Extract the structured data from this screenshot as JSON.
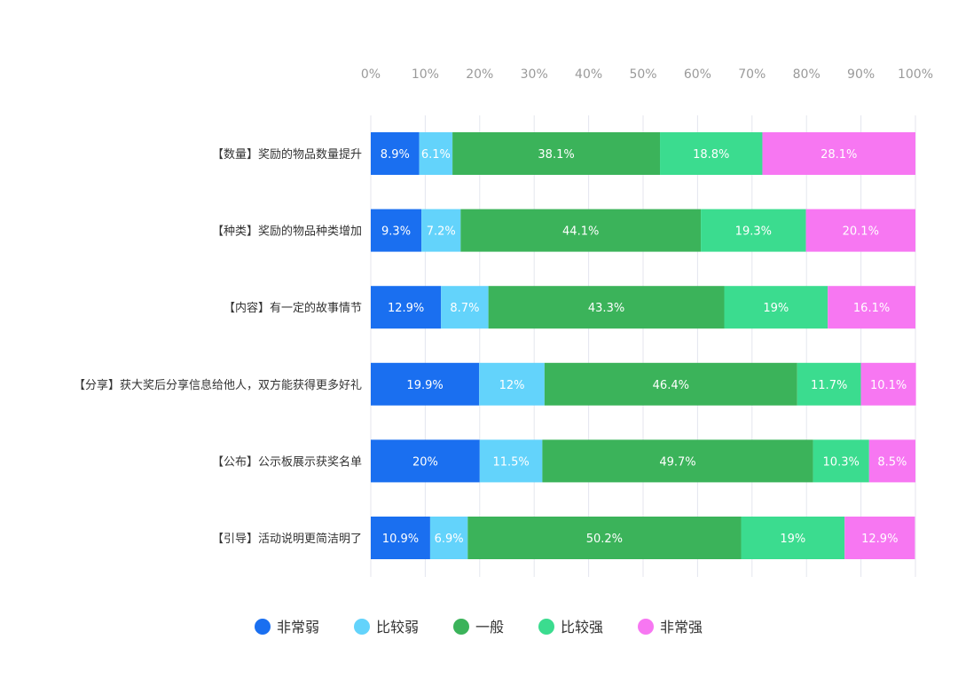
{
  "chart_data": {
    "type": "bar",
    "orientation": "horizontal",
    "stacked": "percent",
    "categories": [
      "【数量】奖励的物品数量提升",
      "【种类】奖励的物品种类增加",
      "【内容】有一定的故事情节",
      "【分享】获大奖后分享信息给他人，双方能获得更多好礼",
      "【公布】公示板展示获奖名单",
      "【引导】活动说明更简洁明了"
    ],
    "series": [
      {
        "name": "非常弱",
        "color": "#1a6ff0",
        "values": [
          8.9,
          9.3,
          12.9,
          19.9,
          20,
          10.9
        ],
        "labels": [
          "8.9%",
          "9.3%",
          "12.9%",
          "19.9%",
          "20%",
          "10.9%"
        ]
      },
      {
        "name": "比较弱",
        "color": "#63d3fb",
        "values": [
          6.1,
          7.2,
          8.7,
          12,
          11.5,
          6.9
        ],
        "labels": [
          "6.1%",
          "7.2%",
          "8.7%",
          "12%",
          "11.5%",
          "6.9%"
        ]
      },
      {
        "name": "一般",
        "color": "#3bb35a",
        "values": [
          38.1,
          44.1,
          43.3,
          46.4,
          49.7,
          50.2
        ],
        "labels": [
          "38.1%",
          "44.1%",
          "43.3%",
          "46.4%",
          "49.7%",
          "50.2%"
        ]
      },
      {
        "name": "比较强",
        "color": "#3bdc8f",
        "values": [
          18.8,
          19.3,
          19,
          11.7,
          10.3,
          19
        ],
        "labels": [
          "18.8%",
          "19.3%",
          "19%",
          "11.7%",
          "10.3%",
          "19%"
        ]
      },
      {
        "name": "非常强",
        "color": "#f777f2",
        "values": [
          28.1,
          20.1,
          16.1,
          10.1,
          8.5,
          12.9
        ],
        "labels": [
          "28.1%",
          "20.1%",
          "16.1%",
          "10.1%",
          "8.5%",
          "12.9%"
        ]
      }
    ],
    "x_ticks": [
      "0%",
      "10%",
      "20%",
      "30%",
      "40%",
      "50%",
      "60%",
      "70%",
      "80%",
      "90%",
      "100%"
    ],
    "xlim": [
      0,
      100
    ],
    "x_axis_position": "top",
    "grid": true,
    "legend": "bottom"
  }
}
